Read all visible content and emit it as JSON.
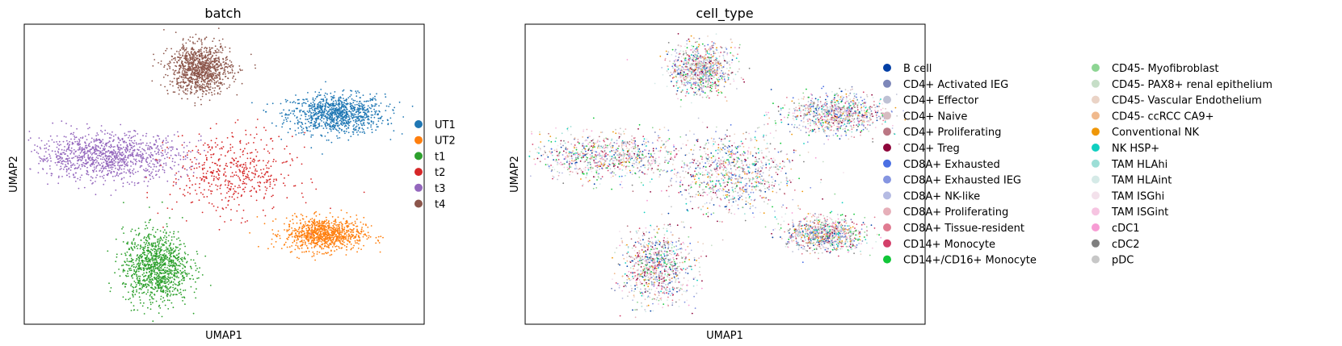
{
  "chart_data": [
    {
      "type": "scatter",
      "title": "batch",
      "xlabel": "UMAP1",
      "ylabel": "UMAP2",
      "grid": false,
      "ticks_visible": false,
      "legend_placement": "right",
      "xlim": [
        0,
        100
      ],
      "ylim": [
        0,
        100
      ],
      "series": [
        {
          "name": "UT1",
          "color": "#1f77b4",
          "center": [
            78,
            70
          ],
          "spread": [
            11,
            6
          ],
          "density": 0.9
        },
        {
          "name": "UT2",
          "color": "#ff7f0e",
          "center": [
            75,
            30
          ],
          "spread": [
            9,
            5
          ],
          "density": 0.85
        },
        {
          "name": "t1",
          "color": "#2ca02c",
          "center": [
            33,
            19
          ],
          "spread": [
            7.5,
            11
          ],
          "density": 1.0
        },
        {
          "name": "t2",
          "color": "#d62728",
          "center": [
            52,
            50
          ],
          "spread": [
            14,
            12
          ],
          "density": 0.45
        },
        {
          "name": "t3",
          "color": "#9467bd",
          "center": [
            21,
            56
          ],
          "spread": [
            17,
            7
          ],
          "density": 1.0
        },
        {
          "name": "t4",
          "color": "#8c564b",
          "center": [
            44,
            85
          ],
          "spread": [
            7,
            7.5
          ],
          "density": 0.95
        }
      ]
    },
    {
      "type": "scatter",
      "title": "cell_type",
      "xlabel": "UMAP1",
      "ylabel": "UMAP2",
      "grid": false,
      "ticks_visible": false,
      "legend_placement": "right",
      "legend_columns": 2,
      "xlim": [
        0,
        100
      ],
      "ylim": [
        0,
        100
      ],
      "series": [
        {
          "name": "B cell",
          "color": "#023fa5"
        },
        {
          "name": "CD4+ Activated IEG",
          "color": "#7d87b9"
        },
        {
          "name": "CD4+ Effector",
          "color": "#bec1d4"
        },
        {
          "name": "CD4+ Naive",
          "color": "#d6bcc0"
        },
        {
          "name": "CD4+ Proliferating",
          "color": "#bb7784"
        },
        {
          "name": "CD4+ Treg",
          "color": "#8e063b"
        },
        {
          "name": "CD8A+ Exhausted",
          "color": "#4a6fe3"
        },
        {
          "name": "CD8A+ Exhausted IEG",
          "color": "#8595e1"
        },
        {
          "name": "CD8A+ NK-like",
          "color": "#b5bbe3"
        },
        {
          "name": "CD8A+ Proliferating",
          "color": "#e6afb9"
        },
        {
          "name": "CD8A+ Tissue-resident",
          "color": "#e07b91"
        },
        {
          "name": "CD14+ Monocyte",
          "color": "#d33f6a"
        },
        {
          "name": "CD14+/CD16+ Monocyte",
          "color": "#11c638"
        },
        {
          "name": "CD45- Myofibroblast",
          "color": "#8dd593"
        },
        {
          "name": "CD45- PAX8+ renal epithelium",
          "color": "#c6dec7"
        },
        {
          "name": "CD45- Vascular Endothelium",
          "color": "#ead3c6"
        },
        {
          "name": "CD45- ccRCC CA9+",
          "color": "#f0b98d"
        },
        {
          "name": "Conventional NK",
          "color": "#ef9708"
        },
        {
          "name": "NK HSP+",
          "color": "#0fcfc0"
        },
        {
          "name": "TAM HLAhi",
          "color": "#9cded6"
        },
        {
          "name": "TAM HLAint",
          "color": "#d5eae7"
        },
        {
          "name": "TAM ISGhi",
          "color": "#f3e1eb"
        },
        {
          "name": "TAM ISGint",
          "color": "#f6c4e1"
        },
        {
          "name": "cDC1",
          "color": "#f79cd4"
        },
        {
          "name": "cDC2",
          "color": "#7f7f7f"
        },
        {
          "name": "pDC",
          "color": "#c7c7c7"
        }
      ]
    }
  ]
}
